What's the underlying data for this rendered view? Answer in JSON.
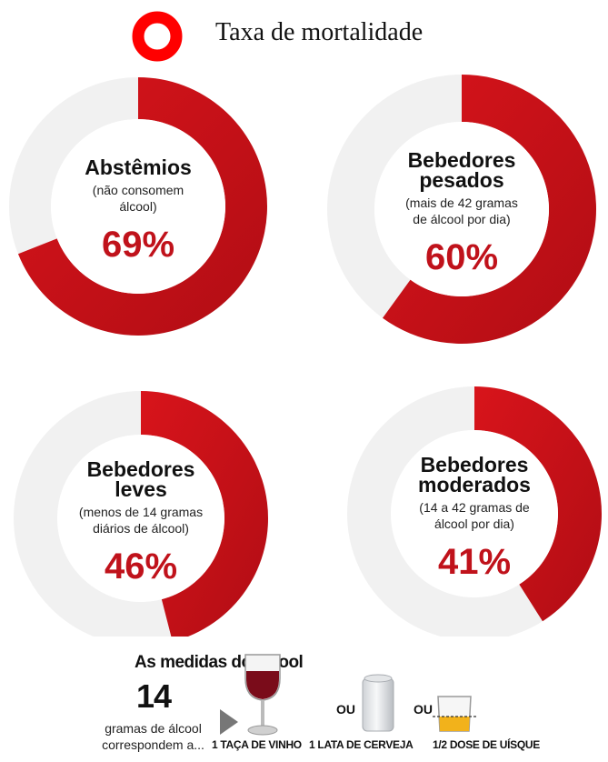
{
  "legend": {
    "label": "Taxa de mortalidade",
    "icon": "red-ring-icon"
  },
  "chart_data": {
    "type": "donut",
    "title": "",
    "colors": {
      "ring": "#d8141b",
      "ring_dark": "#b10d14",
      "track": "#f1f1f1",
      "value_text": "#c0121b",
      "label_text": "#111111"
    },
    "series": [
      {
        "label": "Abstêmios",
        "sub": "(não consomem álcool)",
        "value": 69,
        "value_label": "69%"
      },
      {
        "label": "Bebedores pesados",
        "sub": "(mais de 42 gramas de álcool por dia)",
        "value": 60,
        "value_label": "60%"
      },
      {
        "label": "Bebedores leves",
        "sub": "(menos de 14 gramas diários de álcool)",
        "value": 46,
        "value_label": "46%"
      },
      {
        "label": "Bebedores moderados",
        "sub": "(14 a 42 gramas de álcool por dia)",
        "value": 41,
        "value_label": "41%"
      }
    ]
  },
  "charts_text": [
    {
      "title": [
        "Abstêmios"
      ],
      "sub": [
        "(não consomem",
        "álcool)"
      ],
      "value": "69%"
    },
    {
      "title": [
        "Bebedores",
        "pesados"
      ],
      "sub": [
        "(mais de 42 gramas",
        "de álcool por dia)"
      ],
      "value": "60%"
    },
    {
      "title": [
        "Bebedores",
        "leves"
      ],
      "sub": [
        "(menos de 14 gramas",
        "diários de álcool)"
      ],
      "value": "46%"
    },
    {
      "title": [
        "Bebedores",
        "moderados"
      ],
      "sub": [
        "(14 a 42 gramas de",
        "álcool por dia)"
      ],
      "value": "41%"
    }
  ],
  "footer": {
    "title": "As medidas do álcool",
    "number": "14",
    "desc_line1": "gramas de álcool",
    "desc_line2": "correspondem a...",
    "or1": "OU",
    "or2": "OU",
    "wine_label": "1 TAÇA DE VINHO",
    "beer_label": "1 LATA DE CERVEJA",
    "whisky_label": "1/2 DOSE DE UÍSQUE"
  }
}
